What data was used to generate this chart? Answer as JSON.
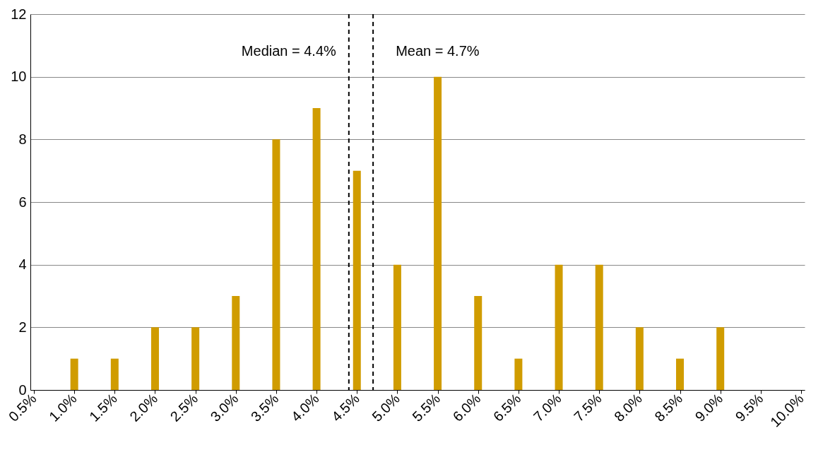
{
  "chart_data": {
    "type": "bar",
    "x": [
      1.0,
      1.5,
      2.0,
      2.5,
      3.0,
      3.5,
      4.0,
      4.5,
      5.0,
      5.5,
      6.0,
      6.5,
      7.0,
      7.5,
      8.0,
      8.5,
      9.0
    ],
    "values": [
      1,
      1,
      2,
      2,
      3,
      8,
      9,
      7,
      4,
      10,
      3,
      1,
      4,
      4,
      2,
      1,
      2
    ],
    "color": "#d09c00",
    "xlim": [
      0.5,
      10
    ],
    "xticks": [
      {
        "value": 0.5,
        "label": "0.5%"
      },
      {
        "value": 1.0,
        "label": "1.0%"
      },
      {
        "value": 1.5,
        "label": "1.5%"
      },
      {
        "value": 2.0,
        "label": "2.0%"
      },
      {
        "value": 2.5,
        "label": "2.5%"
      },
      {
        "value": 3.0,
        "label": "3.0%"
      },
      {
        "value": 3.5,
        "label": "3.5%"
      },
      {
        "value": 4.0,
        "label": "4.0%"
      },
      {
        "value": 4.5,
        "label": "4.5%"
      },
      {
        "value": 5.0,
        "label": "5.0%"
      },
      {
        "value": 5.5,
        "label": "5.5%"
      },
      {
        "value": 6.0,
        "label": "6.0%"
      },
      {
        "value": 6.5,
        "label": "6.5%"
      },
      {
        "value": 7.0,
        "label": "7.0%"
      },
      {
        "value": 7.5,
        "label": "7.5%"
      },
      {
        "value": 8.0,
        "label": "8.0%"
      },
      {
        "value": 8.5,
        "label": "8.5%"
      },
      {
        "value": 9.0,
        "label": "9.0%"
      },
      {
        "value": 9.5,
        "label": "9.5%"
      },
      {
        "value": 10.0,
        "label": "10.0%"
      }
    ],
    "ylim": [
      0,
      12
    ],
    "yticks": [
      0,
      2,
      4,
      6,
      8,
      10,
      12
    ],
    "grid": "y",
    "ref_lines": [
      {
        "axis": "x",
        "value": 4.4,
        "label": "Median = 4.4%",
        "line_style": "dashed",
        "color": "#000000"
      },
      {
        "axis": "x",
        "value": 4.7,
        "label": "Mean = 4.7%",
        "line_style": "dashed",
        "color": "#000000"
      }
    ]
  }
}
